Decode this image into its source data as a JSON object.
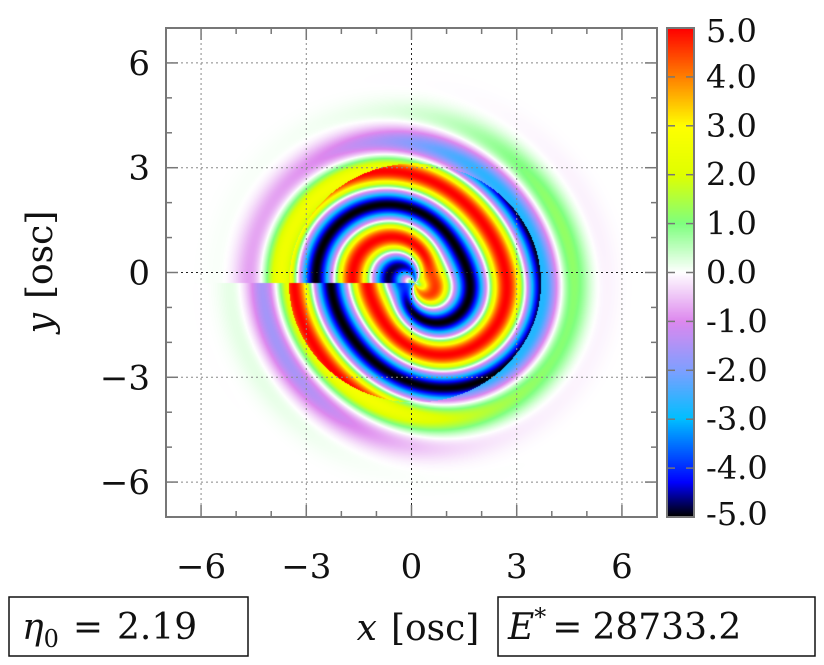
{
  "chart_data": {
    "type": "heatmap",
    "title": "",
    "xlabel": {
      "symbol": "x",
      "unit": "[osc]"
    },
    "ylabel": {
      "symbol": "y",
      "unit": "[osc]"
    },
    "xlim": [
      -7,
      7
    ],
    "ylim": [
      -7,
      7
    ],
    "xticks": [
      -6,
      -3,
      0,
      3,
      6
    ],
    "yticks": [
      -6,
      -3,
      0,
      3,
      6
    ],
    "xtick_labels": [
      "−6",
      "−3",
      "0",
      "3",
      "6"
    ],
    "ytick_labels": [
      "−6",
      "−3",
      "0",
      "3",
      "6"
    ],
    "grid": true,
    "colorbar": {
      "range": [
        -5,
        5
      ],
      "ticks": [
        "5.0",
        "4.0",
        "3.0",
        "2.0",
        "1.0",
        "0.0",
        "-1.0",
        "-2.0",
        "-3.0",
        "-4.0",
        "-5.0"
      ],
      "colors": [
        {
          "value": -5.0,
          "color": "#000000"
        },
        {
          "value": -4.3,
          "color": "#0000ff"
        },
        {
          "value": -3.0,
          "color": "#00bfff"
        },
        {
          "value": -2.0,
          "color": "#7f9fff"
        },
        {
          "value": -1.0,
          "color": "#dd88ee"
        },
        {
          "value": 0.0,
          "color": "#ffffff"
        },
        {
          "value": 1.0,
          "color": "#7fff7f"
        },
        {
          "value": 2.0,
          "color": "#dfff00"
        },
        {
          "value": 3.0,
          "color": "#ffff00"
        },
        {
          "value": 4.0,
          "color": "#ff8000"
        },
        {
          "value": 5.0,
          "color": "#ff0000"
        }
      ]
    },
    "field": {
      "description_of_shape": "four-armed spiral density ripple centred near (0, -0.3)",
      "arms": 4,
      "amplitude": 5.0,
      "core_radius": 3.6,
      "halo_radius": 5.2,
      "center": [
        0.1,
        -0.3
      ]
    }
  },
  "annotations": {
    "eta_box": {
      "symbol": "η",
      "subscript": "0",
      "equals": "=",
      "value": "2.19"
    },
    "energy_box": {
      "symbol": "E",
      "superscript": "*",
      "equals": "=",
      "value": "28733.2"
    }
  }
}
